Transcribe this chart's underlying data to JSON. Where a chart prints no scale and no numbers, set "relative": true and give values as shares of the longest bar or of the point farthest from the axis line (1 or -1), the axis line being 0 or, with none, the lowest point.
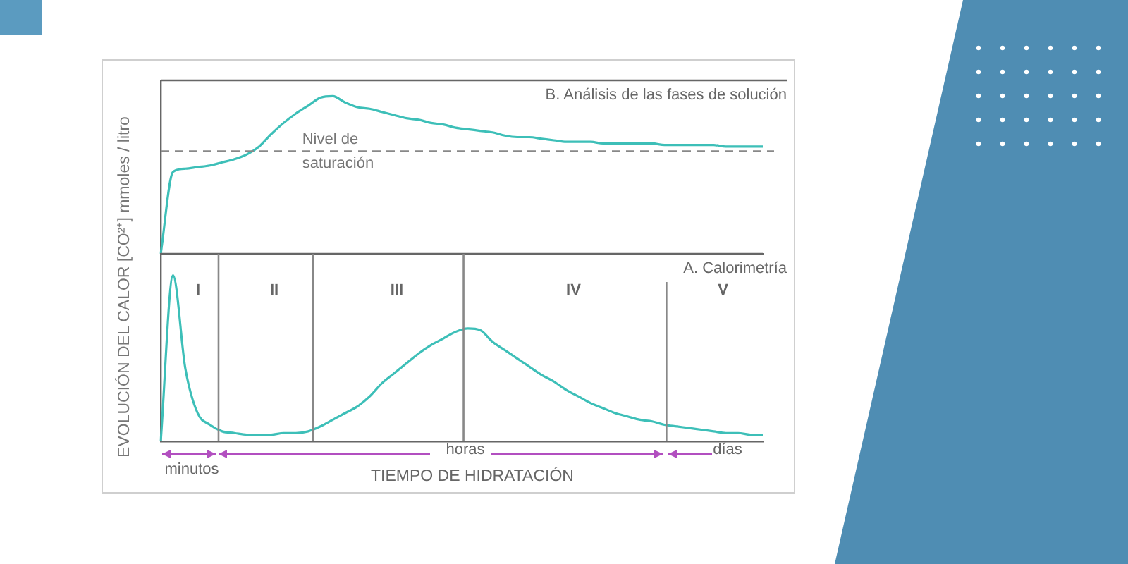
{
  "chart_data": [
    {
      "type": "line",
      "relative": true,
      "ylabel": "EVOLUCIÓN DEL CALOR [CO²⁺] mmoles / litro",
      "legend": false,
      "marker": "none",
      "categories": [
        null,
        null,
        null,
        null,
        null,
        null,
        null,
        null,
        null,
        null,
        null,
        null,
        null,
        null,
        null,
        null,
        null,
        null,
        null,
        null,
        null,
        null,
        null,
        null,
        null,
        null,
        null,
        null,
        null,
        null,
        null,
        null,
        null,
        null,
        null,
        null,
        null,
        null,
        null,
        null,
        null,
        null,
        null,
        null,
        null,
        null,
        null,
        null,
        null,
        null
      ],
      "series": [
        {
          "color": "#3dbfb8",
          "values": [
            0,
            0.52,
            0.54,
            0.55,
            0.56,
            0.58,
            0.6,
            0.63,
            0.68,
            0.76,
            0.83,
            0.89,
            0.94,
            0.99,
            1,
            0.96,
            0.93,
            0.92,
            0.9,
            0.88,
            0.86,
            0.85,
            0.83,
            0.82,
            0.8,
            0.79,
            0.78,
            0.77,
            0.75,
            0.74,
            0.74,
            0.73,
            0.72,
            0.71,
            0.71,
            0.71,
            0.7,
            0.7,
            0.7,
            0.7,
            0.7,
            0.69,
            0.69,
            0.69,
            0.69,
            0.69,
            0.68,
            0.68,
            0.68,
            0.68
          ]
        }
      ],
      "ref_lines": [
        {
          "axis": "y",
          "value": 0.65,
          "label": "Nivel de saturación",
          "color": "#888888",
          "line_style": "dashed"
        }
      ],
      "annotations": [
        "B. Análisis de las fases de solución"
      ]
    },
    {
      "type": "line",
      "relative": true,
      "xlabel": "TIEMPO DE HIDRATACIÓN",
      "legend": false,
      "marker": "none",
      "categories": [
        null,
        null,
        null,
        null,
        null,
        null,
        null,
        null,
        null,
        null,
        null,
        null,
        null,
        null,
        null,
        null,
        null,
        null,
        null,
        null,
        null,
        null,
        null,
        null,
        null,
        null,
        null,
        null,
        null,
        null,
        null,
        null,
        null,
        null,
        null,
        null,
        null,
        null,
        null,
        null,
        null,
        null,
        null,
        null,
        null,
        null,
        null,
        null,
        null,
        null
      ],
      "series": [
        {
          "color": "#3dbfb8",
          "values": [
            0,
            1,
            0.44,
            0.17,
            0.1,
            0.06,
            0.05,
            0.04,
            0.04,
            0.04,
            0.05,
            0.05,
            0.06,
            0.09,
            0.13,
            0.17,
            0.21,
            0.27,
            0.35,
            0.41,
            0.47,
            0.53,
            0.58,
            0.62,
            0.66,
            0.68,
            0.67,
            0.6,
            0.55,
            0.5,
            0.45,
            0.4,
            0.36,
            0.31,
            0.27,
            0.23,
            0.2,
            0.17,
            0.15,
            0.13,
            0.12,
            0.1,
            0.09,
            0.08,
            0.07,
            0.06,
            0.05,
            0.05,
            0.04,
            0.04
          ]
        }
      ],
      "annotations": [
        "A. Calorimetría",
        "I",
        "II",
        "III",
        "IV",
        "V",
        "minutos",
        "horas",
        "días"
      ]
    }
  ]
}
